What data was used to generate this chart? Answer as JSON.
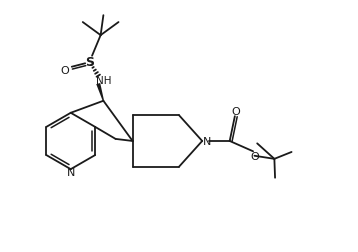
{
  "bg": "#ffffff",
  "lc": "#1a1a1a",
  "lw": 1.3,
  "fw": 3.58,
  "fh": 2.53,
  "dpi": 100,
  "xlim": [
    0,
    10
  ],
  "ylim": [
    0,
    7
  ]
}
